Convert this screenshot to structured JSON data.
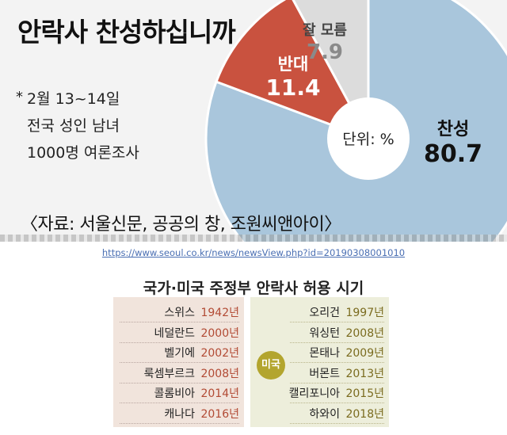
{
  "header": {
    "title": "안락사 찬성하십니까"
  },
  "note": {
    "star": "*",
    "lines": [
      "2월 13~14일",
      "전국 성인 남녀",
      "1000명 여론조사"
    ]
  },
  "source": "〈자료: 서울신문, 공공의 창, 조원씨앤아이〉",
  "url": "https://www.seoul.co.kr/news/newsView.php?id=20190308001010",
  "colors": {
    "approve": "#a9c6dc",
    "oppose": "#c9523f",
    "unknown": "#dcdcdc",
    "center": "#ffffff"
  },
  "chart_data": [
    {
      "type": "pie",
      "title": "안락사 찬성하십니까",
      "unit_label": "단위: %",
      "slices": [
        {
          "label": "찬성",
          "value": 80.7
        },
        {
          "label": "반대",
          "value": 11.4
        },
        {
          "label": "잘 모름",
          "value": 7.9
        }
      ]
    },
    {
      "type": "table",
      "title": "국가·미국 주정부 안락사 허용 시기",
      "countries": [
        {
          "name": "스위스",
          "year": "1942년"
        },
        {
          "name": "네덜란드",
          "year": "2000년"
        },
        {
          "name": "벨기에",
          "year": "2002년"
        },
        {
          "name": "룩셈부르크",
          "year": "2008년"
        },
        {
          "name": "콜롬비아",
          "year": "2014년"
        },
        {
          "name": "캐나다",
          "year": "2016년"
        }
      ],
      "us_badge": "미국",
      "us_states": [
        {
          "name": "오리건",
          "year": "1997년"
        },
        {
          "name": "워싱턴",
          "year": "2008년"
        },
        {
          "name": "몬태나",
          "year": "2009년"
        },
        {
          "name": "버몬트",
          "year": "2013년"
        },
        {
          "name": "캘리포니아",
          "year": "2015년"
        },
        {
          "name": "하와이",
          "year": "2018년"
        }
      ]
    }
  ]
}
